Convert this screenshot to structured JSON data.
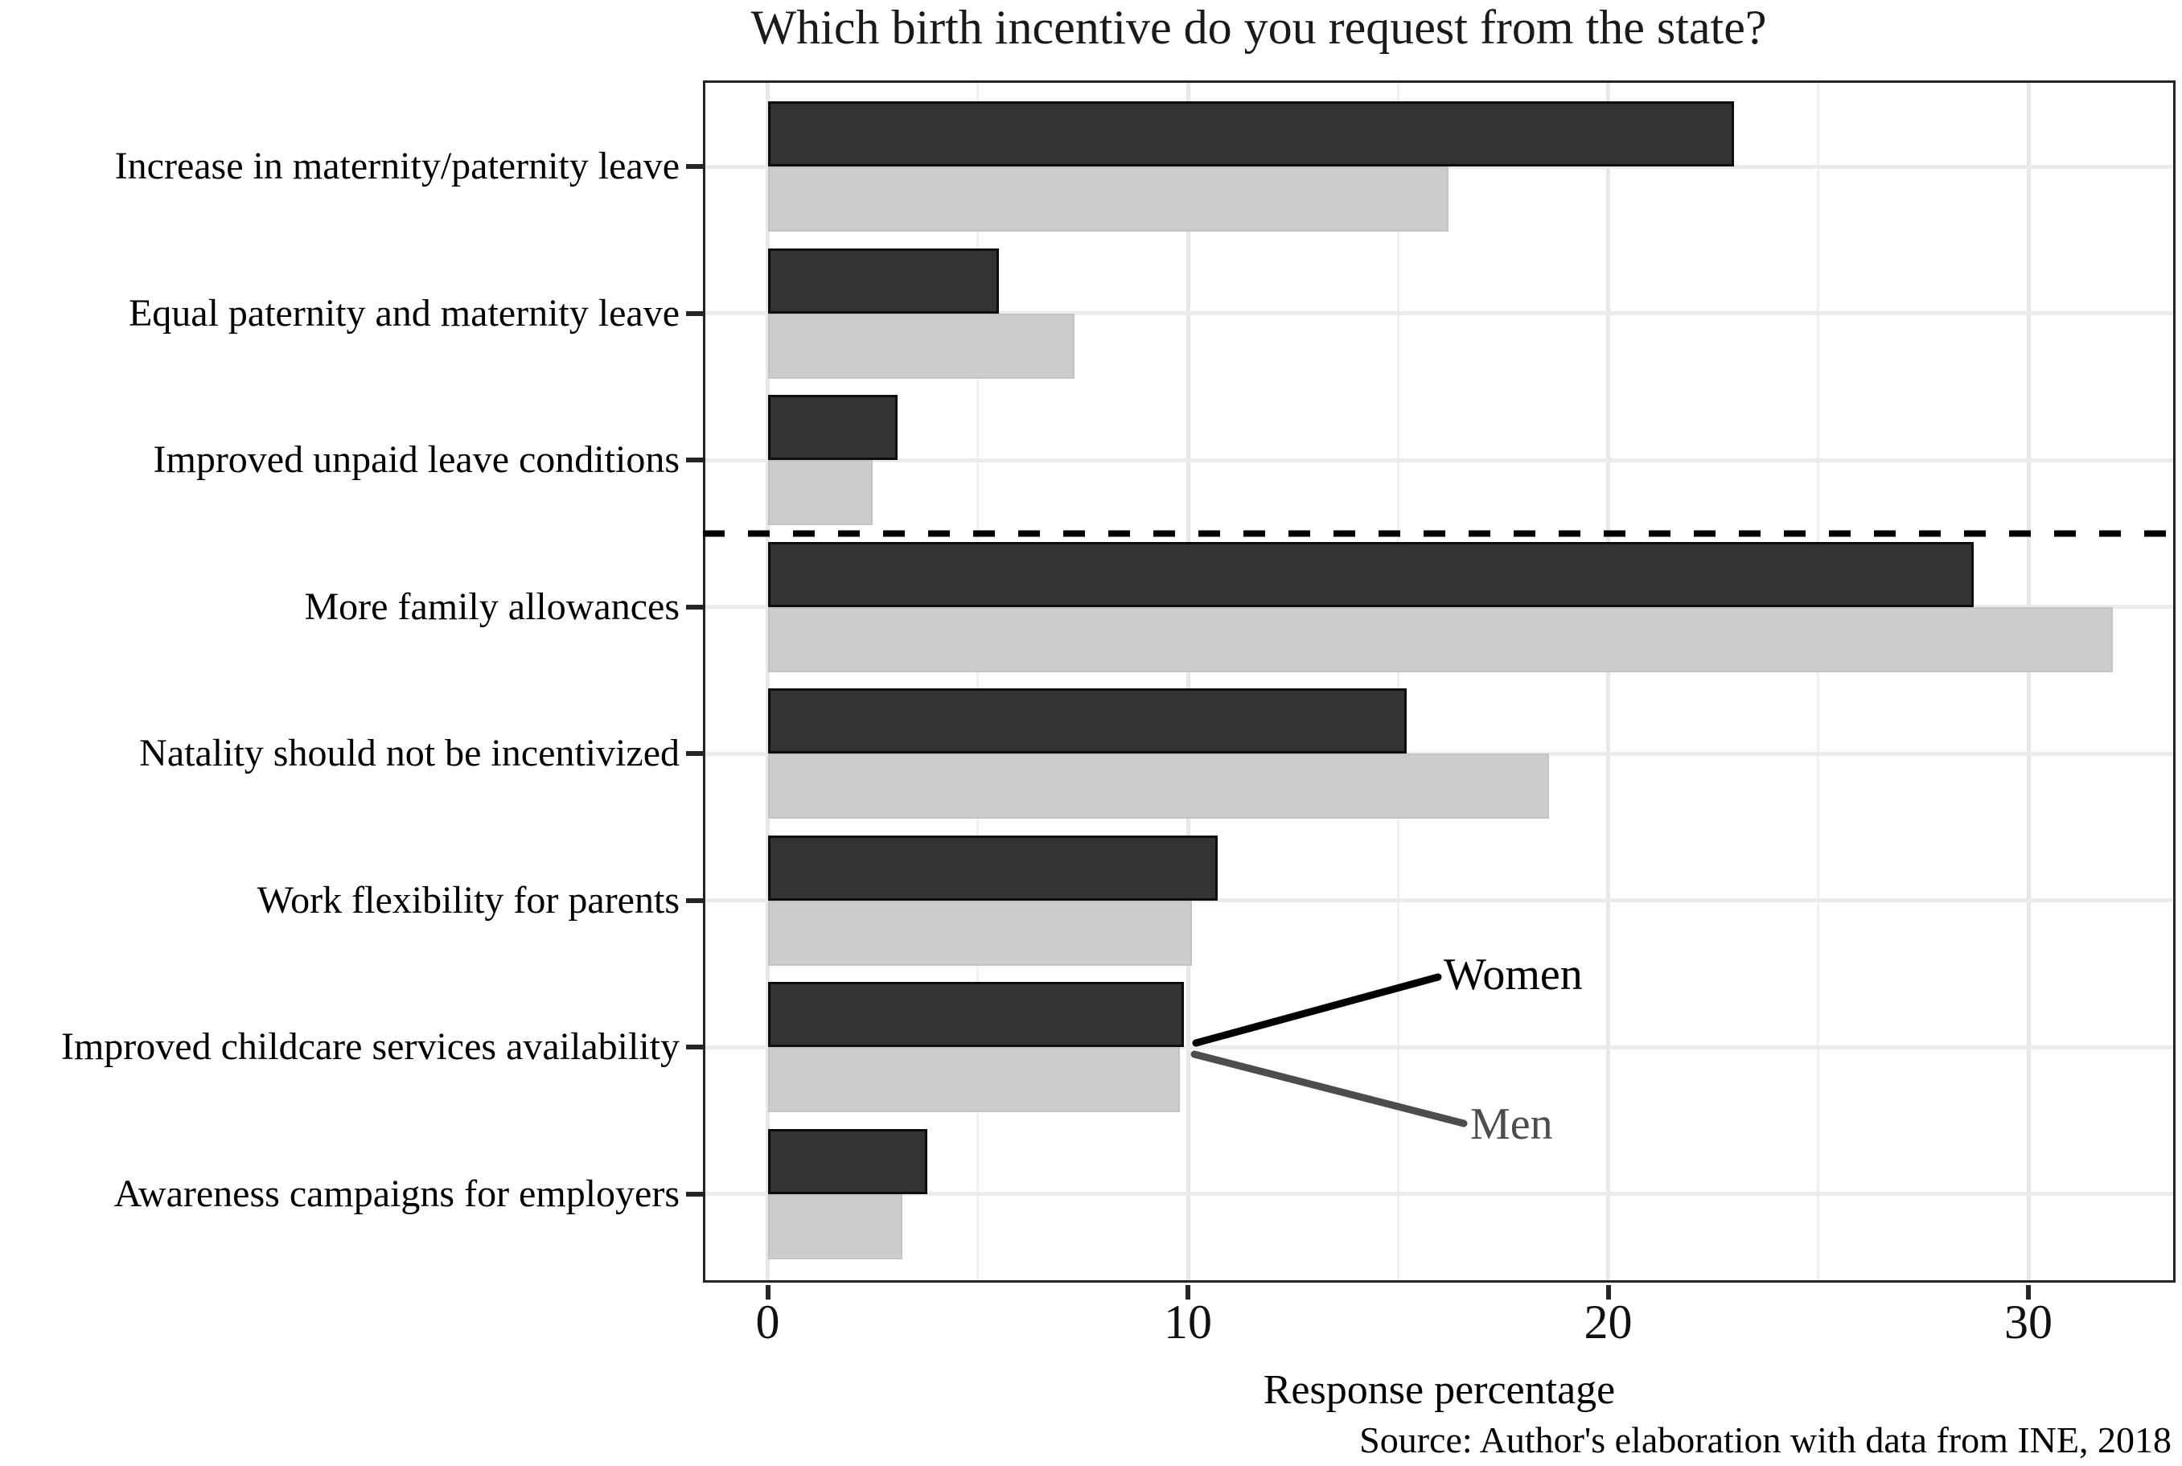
{
  "title": "Which birth incentive do you request from the state?",
  "source": "Source: Author's elaboration with data from INE, 2018",
  "annotations": {
    "women_label": "Women",
    "men_label": "Men"
  },
  "colors": {
    "women_fill": "#333333",
    "women_border": "#0d0d0d",
    "men_fill": "#cccccc",
    "men_border": "#c3c3c3",
    "men_label_text": "#4d4d4d",
    "grid_major": "#e7e7e7",
    "grid_minor": "#f0f0f0",
    "axis": "#242424",
    "divider": "#000000"
  },
  "chart_data": {
    "type": "bar",
    "orientation": "horizontal",
    "title": "Which birth incentive do you request from the state?",
    "xlabel": "Response percentage",
    "ylabel": "",
    "categories": [
      "Increase in maternity/paternity leave",
      "Equal paternity and maternity leave",
      "Improved unpaid leave conditions",
      "More family allowances",
      "Natality should not be incentivized",
      "Work flexibility for parents",
      "Improved childcare services availability",
      "Awareness campaigns for employers"
    ],
    "series": [
      {
        "name": "Women",
        "color": "#333333",
        "values": [
          23.0,
          5.5,
          3.1,
          28.7,
          15.2,
          10.7,
          9.9,
          3.8
        ]
      },
      {
        "name": "Men",
        "color": "#cccccc",
        "values": [
          16.2,
          7.3,
          2.5,
          32.0,
          18.6,
          10.1,
          9.8,
          3.2
        ]
      }
    ],
    "xlim": [
      0,
      33.5
    ],
    "xticks": [
      0,
      10,
      20,
      30
    ],
    "minor_gridlines": [
      5,
      15,
      25
    ],
    "grid": true,
    "legend_position": "inline-annotation-lines",
    "divider_after_category": "Improved unpaid leave conditions"
  }
}
